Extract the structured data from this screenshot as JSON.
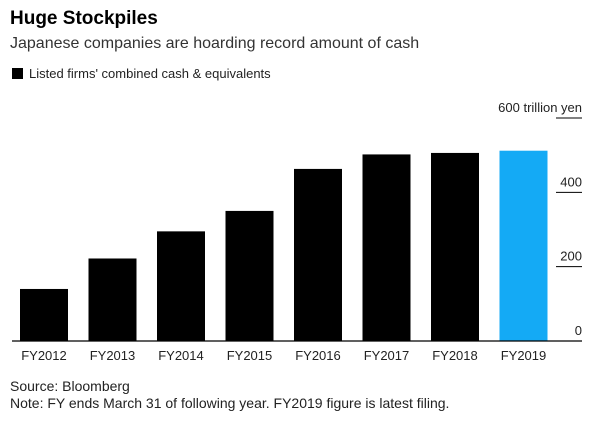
{
  "header": {
    "title": "Huge Stockpiles",
    "subtitle": "Japanese companies are hoarding record amount of cash"
  },
  "chart_data": {
    "type": "bar",
    "categories": [
      "FY2012",
      "FY2013",
      "FY2014",
      "FY2015",
      "FY2016",
      "FY2017",
      "FY2018",
      "FY2019"
    ],
    "series": [
      {
        "name": "Listed firms' combined cash & equivalents",
        "values": [
          140,
          222,
          295,
          350,
          463,
          502,
          506,
          512
        ]
      }
    ],
    "highlight_index": 7,
    "colors": {
      "bar": "#000000",
      "highlight": "#14aaf5",
      "axis": "#000000",
      "text": "#000000"
    },
    "yaxis": {
      "ticks": [
        0,
        200,
        400,
        600
      ],
      "tick_labels": [
        "0",
        "200",
        "400",
        "600 trillion yen"
      ],
      "position": "right"
    },
    "ylim": [
      0,
      600
    ],
    "grid": false,
    "legend_position": "top-left"
  },
  "footer": {
    "source": "Source: Bloomberg",
    "note": "Note: FY ends March 31 of following year. FY2019 figure is latest filing."
  }
}
